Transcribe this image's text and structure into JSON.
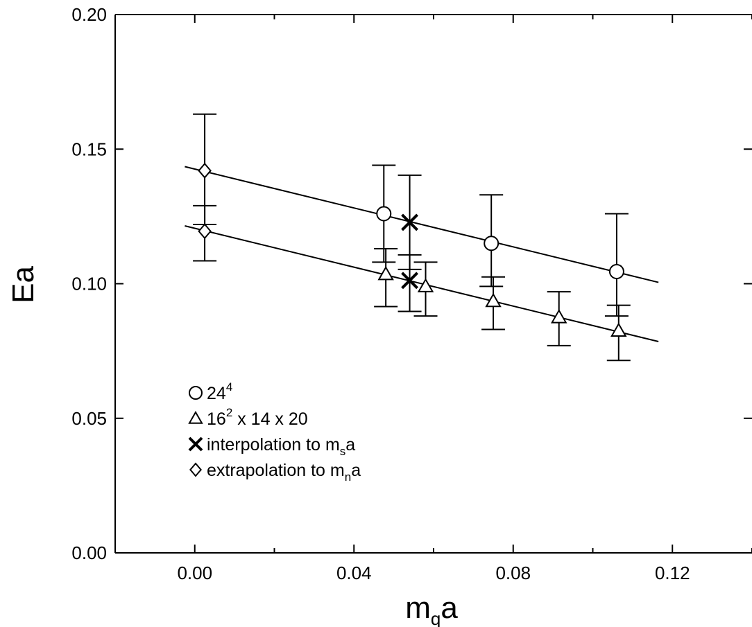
{
  "chart_data": {
    "type": "scatter",
    "xlabel": "m",
    "xlabel_sub": "q",
    "xlabel_tail": "a",
    "ylabel": "Ea",
    "xlim": [
      -0.02,
      0.14
    ],
    "ylim": [
      0.0,
      0.2
    ],
    "x_ticks": [
      0.0,
      0.04,
      0.08,
      0.12
    ],
    "x_tick_labels": [
      "0.00",
      "0.04",
      "0.08",
      "0.12"
    ],
    "y_ticks": [
      0.0,
      0.05,
      0.1,
      0.15,
      0.2
    ],
    "y_tick_labels": [
      "0.00",
      "0.05",
      "0.10",
      "0.15",
      "0.20"
    ],
    "grid": false,
    "legend_position": "bottom-left",
    "series": [
      {
        "name": "24",
        "name_sup": "4",
        "marker": "circle",
        "points": [
          {
            "x": 0.0475,
            "y": 0.126,
            "err_lo": 0.018,
            "err_hi": 0.018
          },
          {
            "x": 0.0745,
            "y": 0.115,
            "err_lo": 0.016,
            "err_hi": 0.018
          },
          {
            "x": 0.106,
            "y": 0.1045,
            "err_lo": 0.0165,
            "err_hi": 0.0215
          }
        ]
      },
      {
        "name": "16",
        "name_sup": "2",
        "name_tail": " x 14 x 20",
        "marker": "triangle",
        "points": [
          {
            "x": 0.048,
            "y": 0.1035,
            "err_lo": 0.012,
            "err_hi": 0.0095
          },
          {
            "x": 0.058,
            "y": 0.099,
            "err_lo": 0.011,
            "err_hi": 0.009
          },
          {
            "x": 0.075,
            "y": 0.0935,
            "err_lo": 0.0105,
            "err_hi": 0.009
          },
          {
            "x": 0.0915,
            "y": 0.0875,
            "err_lo": 0.0105,
            "err_hi": 0.0095
          },
          {
            "x": 0.1065,
            "y": 0.0825,
            "err_lo": 0.011,
            "err_hi": 0.0095
          }
        ]
      },
      {
        "name": "interpolation to m",
        "name_sub": "s",
        "name_tail": "a",
        "marker": "cross",
        "points": [
          {
            "x": 0.054,
            "y": 0.1228,
            "err_lo": 0.0175,
            "err_hi": 0.0175
          },
          {
            "x": 0.054,
            "y": 0.1012,
            "err_lo": 0.0115,
            "err_hi": 0.0095
          }
        ]
      },
      {
        "name": "extrapolation to m",
        "name_sub": "n",
        "name_tail": "a",
        "marker": "diamond",
        "points": [
          {
            "x": 0.0025,
            "y": 0.142,
            "err_lo": 0.02,
            "err_hi": 0.021
          },
          {
            "x": 0.0025,
            "y": 0.1195,
            "err_lo": 0.011,
            "err_hi": 0.0095
          }
        ]
      }
    ],
    "fit_lines": [
      {
        "x": [
          -0.0025,
          0.1165
        ],
        "y": [
          0.1435,
          0.1005
        ]
      },
      {
        "x": [
          -0.0025,
          0.1165
        ],
        "y": [
          0.1215,
          0.0785
        ]
      }
    ]
  }
}
